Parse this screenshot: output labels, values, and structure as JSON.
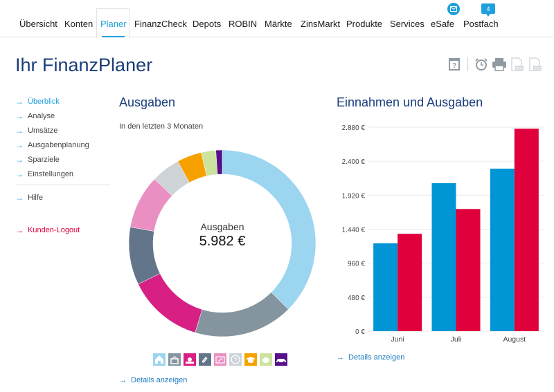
{
  "nav": {
    "items": [
      {
        "label": "Übersicht",
        "active": false
      },
      {
        "label": "Konten",
        "active": false
      },
      {
        "label": "Planer",
        "active": true
      },
      {
        "label": "FinanzCheck",
        "active": false
      },
      {
        "label": "Depots",
        "active": false
      },
      {
        "label": "ROBIN",
        "active": false
      },
      {
        "label": "Märkte",
        "active": false
      },
      {
        "label": "ZinsMarkt",
        "active": false
      },
      {
        "label": "Produkte",
        "active": false
      },
      {
        "label": "Services",
        "active": false
      },
      {
        "label": "eSafe",
        "active": false
      },
      {
        "label": "Postfach",
        "active": false
      }
    ],
    "esafe_icon": "envelope-icon",
    "postfach_count": "4",
    "accent": "#1ea0dc"
  },
  "page": {
    "title": "Ihr FinanzPlaner",
    "tools": [
      "help-book-icon",
      "alarm-clock-icon",
      "printer-icon",
      "pdf-file-icon",
      "csv-file-icon"
    ]
  },
  "sidebar": {
    "items": [
      {
        "label": "Überblick",
        "active": true
      },
      {
        "label": "Analyse"
      },
      {
        "label": "Umsätze"
      },
      {
        "label": "Ausgabenplanung"
      },
      {
        "label": "Sparziele"
      },
      {
        "label": "Einstellungen"
      }
    ],
    "help": "Hilfe",
    "logout": "Kunden-Logout"
  },
  "ausgaben": {
    "heading": "Ausgaben",
    "subtitle": "In den letzten 3 Monaten",
    "center_label": "Ausgaben",
    "center_value": "5.982 €",
    "details_link": "Details anzeigen",
    "legend_icons": [
      {
        "name": "home-icon",
        "color": "#9bd5f0"
      },
      {
        "name": "shopping-basket-icon",
        "color": "#85959f"
      },
      {
        "name": "leisure-sun-icon",
        "color": "#d81f84"
      },
      {
        "name": "paperclip-icon",
        "color": "#62758a"
      },
      {
        "name": "signature-icon",
        "color": "#ea8fc2"
      },
      {
        "name": "question-icon",
        "color": "#cdd3d7"
      },
      {
        "name": "education-cap-icon",
        "color": "#f7a100"
      },
      {
        "name": "piggy-bank-icon",
        "color": "#cbe39c"
      },
      {
        "name": "car-icon",
        "color": "#55108a"
      }
    ]
  },
  "einnahmen": {
    "heading": "Einnahmen und Ausgaben",
    "details_link": "Details anzeigen"
  },
  "chart_data": [
    {
      "type": "pie",
      "title": "Ausgaben",
      "subtitle": "In den letzten 3 Monaten",
      "total": 5982,
      "unit": "€",
      "slices": [
        {
          "category": "Wohnen",
          "value": 2243,
          "color": "#9bd5f0"
        },
        {
          "category": "Einkauf",
          "value": 1029,
          "color": "#85959f"
        },
        {
          "category": "Freizeit",
          "value": 784,
          "color": "#d81f84"
        },
        {
          "category": "Sonstiges",
          "value": 598,
          "color": "#62758a"
        },
        {
          "category": "Verträge",
          "value": 556,
          "color": "#ea8fc2"
        },
        {
          "category": "Unkategorisiert",
          "value": 299,
          "color": "#cdd3d7"
        },
        {
          "category": "Bildung",
          "value": 257,
          "color": "#f7a100"
        },
        {
          "category": "Sparen",
          "value": 150,
          "color": "#cbe39c"
        },
        {
          "category": "Mobilität",
          "value": 66,
          "color": "#55108a"
        }
      ]
    },
    {
      "type": "bar",
      "title": "Einnahmen und Ausgaben",
      "categories": [
        "Juni",
        "Juli",
        "August"
      ],
      "series": [
        {
          "name": "Einnahmen",
          "values": [
            1240,
            2090,
            2295
          ],
          "color": "#0096d6"
        },
        {
          "name": "Ausgaben",
          "values": [
            1375,
            1725,
            2860
          ],
          "color": "#e0003c"
        }
      ],
      "yticks": [
        "0 €",
        "480 €",
        "960 €",
        "1.440 €",
        "1.920 €",
        "2.400 €",
        "2.880 €"
      ],
      "ylim": [
        0,
        2880
      ],
      "grid": true
    }
  ]
}
